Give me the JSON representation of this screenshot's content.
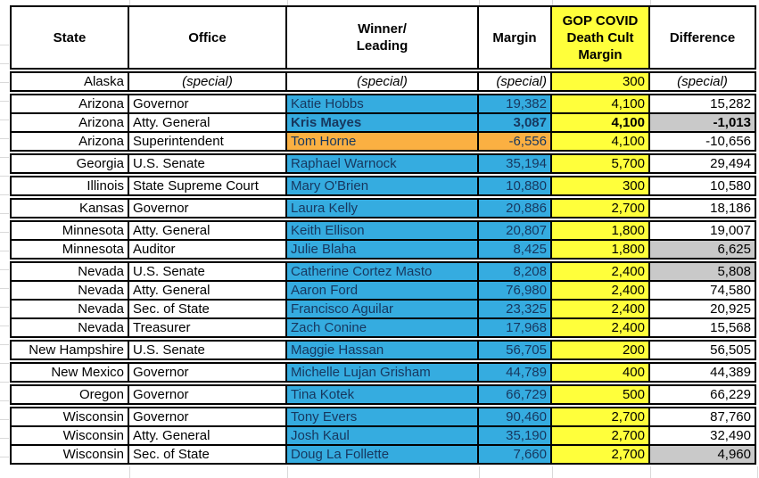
{
  "colors": {
    "winner_blue": "#35ACE0",
    "loser_orange": "#FBB042",
    "gop_yellow": "#FFFF3B",
    "negative_gray": "#C9C9C9",
    "border_black": "#000000",
    "colored_cell_text": "#17375E",
    "gridline_gray": "#D9D9D9"
  },
  "table": {
    "columns": [
      {
        "id": "state",
        "lines": [
          "State"
        ]
      },
      {
        "id": "office",
        "lines": [
          "Office"
        ]
      },
      {
        "id": "winner",
        "lines": [
          "Winner/",
          "Leading"
        ]
      },
      {
        "id": "margin",
        "lines": [
          "Margin"
        ]
      },
      {
        "id": "gop",
        "lines": [
          "GOP COVID",
          "Death Cult",
          "Margin"
        ],
        "highlight": true
      },
      {
        "id": "difference",
        "lines": [
          "Difference"
        ]
      }
    ],
    "groups": [
      {
        "rows": [
          {
            "state": "Alaska",
            "office": "(special)",
            "winner": "(special)",
            "margin": "(special)",
            "gop": "300",
            "difference": "(special)",
            "winner_bg": "none",
            "diff_bg": "white",
            "bold": false,
            "special": true
          }
        ]
      },
      {
        "rows": [
          {
            "state": "Arizona",
            "office": "Governor",
            "winner": "Katie Hobbs",
            "margin": "19,382",
            "gop": "4,100",
            "difference": "15,282",
            "winner_bg": "blue",
            "diff_bg": "white",
            "bold": false,
            "special": false
          },
          {
            "state": "Arizona",
            "office": "Atty. General",
            "winner": "Kris Mayes",
            "margin": "3,087",
            "gop": "4,100",
            "difference": "-1,013",
            "winner_bg": "blue",
            "diff_bg": "gray",
            "bold": true,
            "special": false
          },
          {
            "state": "Arizona",
            "office": "Superintendent",
            "winner": "Tom Horne",
            "margin": "-6,556",
            "gop": "4,100",
            "difference": "-10,656",
            "winner_bg": "orange",
            "diff_bg": "white",
            "bold": false,
            "special": false
          }
        ]
      },
      {
        "rows": [
          {
            "state": "Georgia",
            "office": "U.S. Senate",
            "winner": "Raphael Warnock",
            "margin": "35,194",
            "gop": "5,700",
            "difference": "29,494",
            "winner_bg": "blue",
            "diff_bg": "white",
            "bold": false,
            "special": false
          }
        ]
      },
      {
        "rows": [
          {
            "state": "Illinois",
            "office": "State Supreme Court",
            "winner": "Mary O'Brien",
            "margin": "10,880",
            "gop": "300",
            "difference": "10,580",
            "winner_bg": "blue",
            "diff_bg": "white",
            "bold": false,
            "special": false
          }
        ]
      },
      {
        "rows": [
          {
            "state": "Kansas",
            "office": "Governor",
            "winner": "Laura Kelly",
            "margin": "20,886",
            "gop": "2,700",
            "difference": "18,186",
            "winner_bg": "blue",
            "diff_bg": "white",
            "bold": false,
            "special": false
          }
        ]
      },
      {
        "rows": [
          {
            "state": "Minnesota",
            "office": "Atty. General",
            "winner": "Keith Ellison",
            "margin": "20,807",
            "gop": "1,800",
            "difference": "19,007",
            "winner_bg": "blue",
            "diff_bg": "white",
            "bold": false,
            "special": false
          },
          {
            "state": "Minnesota",
            "office": "Auditor",
            "winner": "Julie Blaha",
            "margin": "8,425",
            "gop": "1,800",
            "difference": "6,625",
            "winner_bg": "blue",
            "diff_bg": "gray",
            "bold": false,
            "special": false
          }
        ]
      },
      {
        "rows": [
          {
            "state": "Nevada",
            "office": "U.S. Senate",
            "winner": "Catherine Cortez Masto",
            "margin": "8,208",
            "gop": "2,400",
            "difference": "5,808",
            "winner_bg": "blue",
            "diff_bg": "gray",
            "bold": false,
            "special": false
          },
          {
            "state": "Nevada",
            "office": "Atty. General",
            "winner": "Aaron Ford",
            "margin": "76,980",
            "gop": "2,400",
            "difference": "74,580",
            "winner_bg": "blue",
            "diff_bg": "white",
            "bold": false,
            "special": false
          },
          {
            "state": "Nevada",
            "office": "Sec. of State",
            "winner": "Francisco Aguilar",
            "margin": "23,325",
            "gop": "2,400",
            "difference": "20,925",
            "winner_bg": "blue",
            "diff_bg": "white",
            "bold": false,
            "special": false
          },
          {
            "state": "Nevada",
            "office": "Treasurer",
            "winner": "Zach Conine",
            "margin": "17,968",
            "gop": "2,400",
            "difference": "15,568",
            "winner_bg": "blue",
            "diff_bg": "white",
            "bold": false,
            "special": false
          }
        ]
      },
      {
        "rows": [
          {
            "state": "New Hampshire",
            "office": "U.S. Senate",
            "winner": "Maggie Hassan",
            "margin": "56,705",
            "gop": "200",
            "difference": "56,505",
            "winner_bg": "blue",
            "diff_bg": "white",
            "bold": false,
            "special": false
          }
        ]
      },
      {
        "rows": [
          {
            "state": "New Mexico",
            "office": "Governor",
            "winner": "Michelle Lujan Grisham",
            "margin": "44,789",
            "gop": "400",
            "difference": "44,389",
            "winner_bg": "blue",
            "diff_bg": "white",
            "bold": false,
            "special": false
          }
        ]
      },
      {
        "rows": [
          {
            "state": "Oregon",
            "office": "Governor",
            "winner": "Tina Kotek",
            "margin": "66,729",
            "gop": "500",
            "difference": "66,229",
            "winner_bg": "blue",
            "diff_bg": "white",
            "bold": false,
            "special": false
          }
        ]
      },
      {
        "rows": [
          {
            "state": "Wisconsin",
            "office": "Governor",
            "winner": "Tony Evers",
            "margin": "90,460",
            "gop": "2,700",
            "difference": "87,760",
            "winner_bg": "blue",
            "diff_bg": "white",
            "bold": false,
            "special": false
          },
          {
            "state": "Wisconsin",
            "office": "Atty. General",
            "winner": "Josh Kaul",
            "margin": "35,190",
            "gop": "2,700",
            "difference": "32,490",
            "winner_bg": "blue",
            "diff_bg": "white",
            "bold": false,
            "special": false
          },
          {
            "state": "Wisconsin",
            "office": "Sec. of State",
            "winner": "Doug La Follette",
            "margin": "7,660",
            "gop": "2,700",
            "difference": "4,960",
            "winner_bg": "blue",
            "diff_bg": "gray",
            "bold": false,
            "special": false
          }
        ]
      }
    ]
  }
}
